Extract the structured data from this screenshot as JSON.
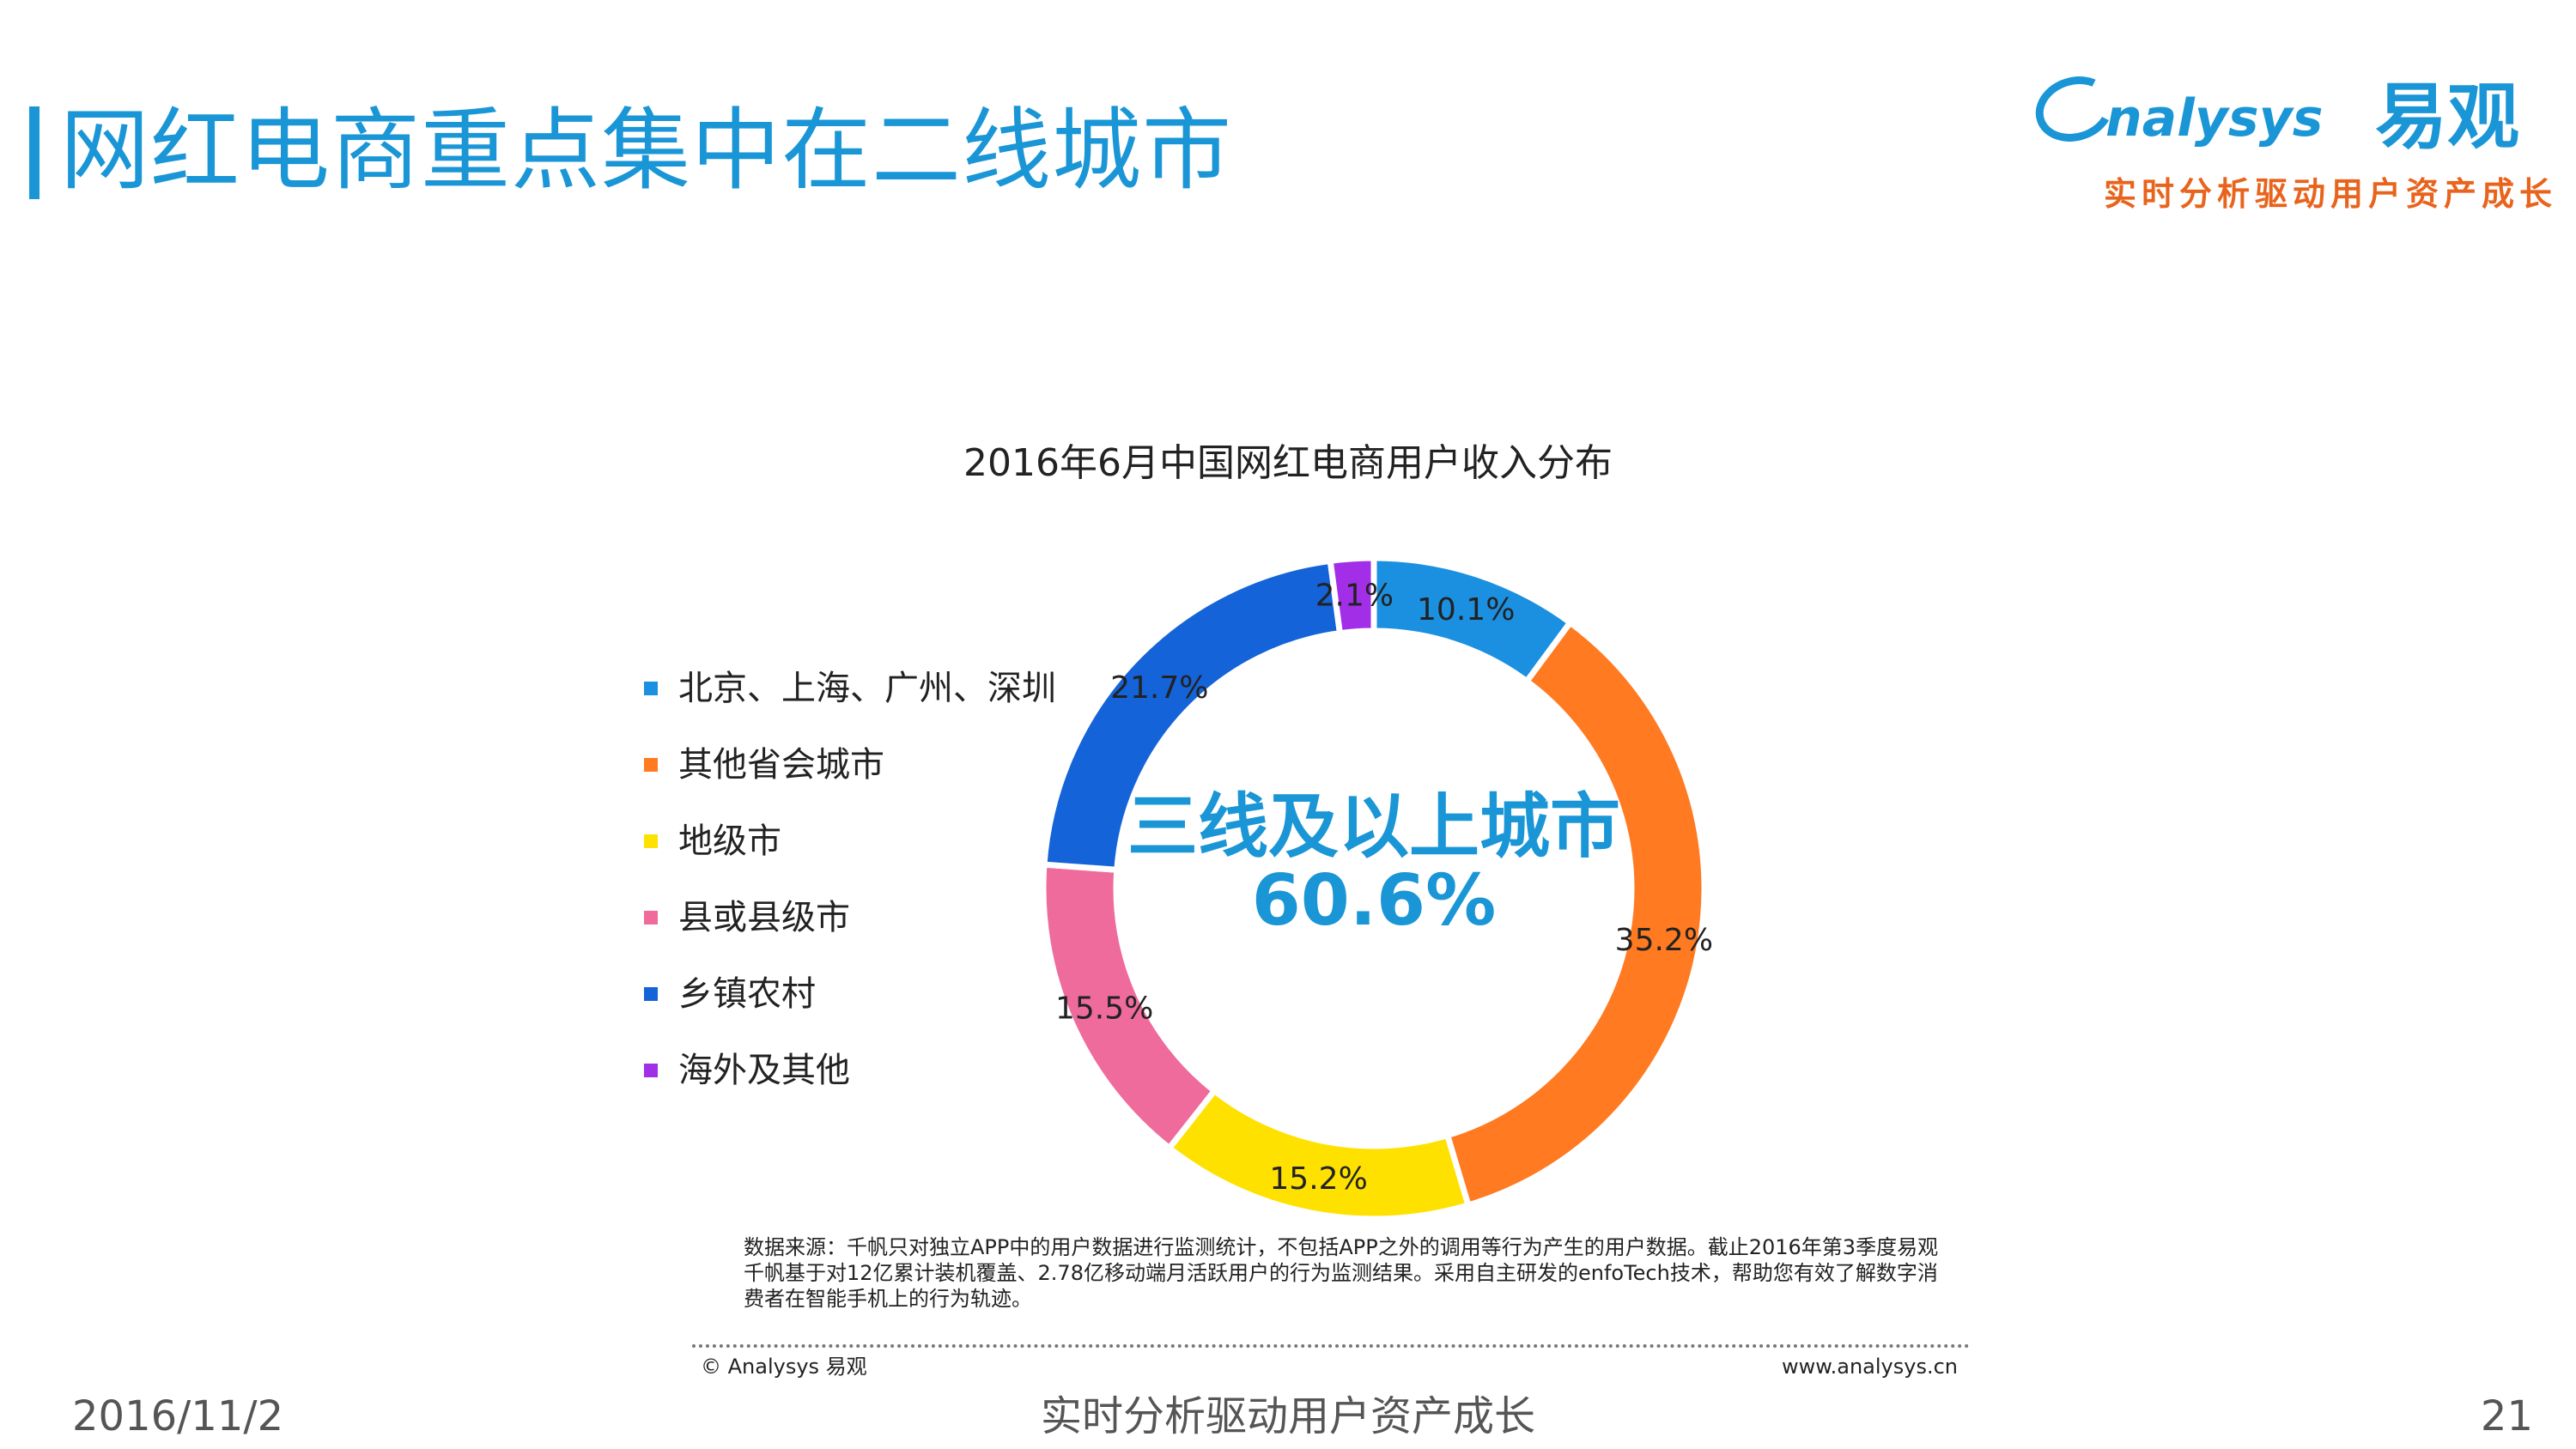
{
  "page": {
    "title": "网红电商重点集中在二线城市",
    "logo": {
      "wordmark": "nalysys",
      "cn_name": "易观",
      "tagline": "实时分析驱动用户资产成长"
    }
  },
  "chart_data": {
    "type": "pie",
    "variant": "donut",
    "title": "2016年6月中国网红电商用户收入分布",
    "categories": [
      "北京、上海、广州、深圳",
      "其他省会城市",
      "地级市",
      "县或县级市",
      "乡镇农村",
      "海外及其他"
    ],
    "values": [
      10.1,
      35.2,
      15.2,
      15.5,
      21.7,
      2.1
    ],
    "data_labels": [
      "10.1%",
      "35.2%",
      "15.2%",
      "15.5%",
      "21.7%",
      "2.1%"
    ],
    "colors": [
      "#1b8fe0",
      "#ff7a21",
      "#ffe100",
      "#ee6b9c",
      "#1463d8",
      "#a22ee8"
    ],
    "legend_position": "left",
    "center_text": {
      "line1": "三线及以上城市",
      "line2": "60.6%"
    }
  },
  "note": {
    "source": "数据来源：千帆只对独立APP中的用户数据进行监测统计，不包括APP之外的调用等行为产生的用户数据。截止2016年第3季度易观千帆基于对12亿累计装机覆盖、2.78亿移动端月活跃用户的行为监测结果。采用自主研发的enfoTech技术，帮助您有效了解数字消费者在智能手机上的行为轨迹。",
    "copyright": "© Analysys 易观",
    "website": "www.analysys.cn"
  },
  "footer": {
    "date": "2016/11/2",
    "slogan": "实时分析驱动用户资产成长",
    "page_number": "21"
  }
}
